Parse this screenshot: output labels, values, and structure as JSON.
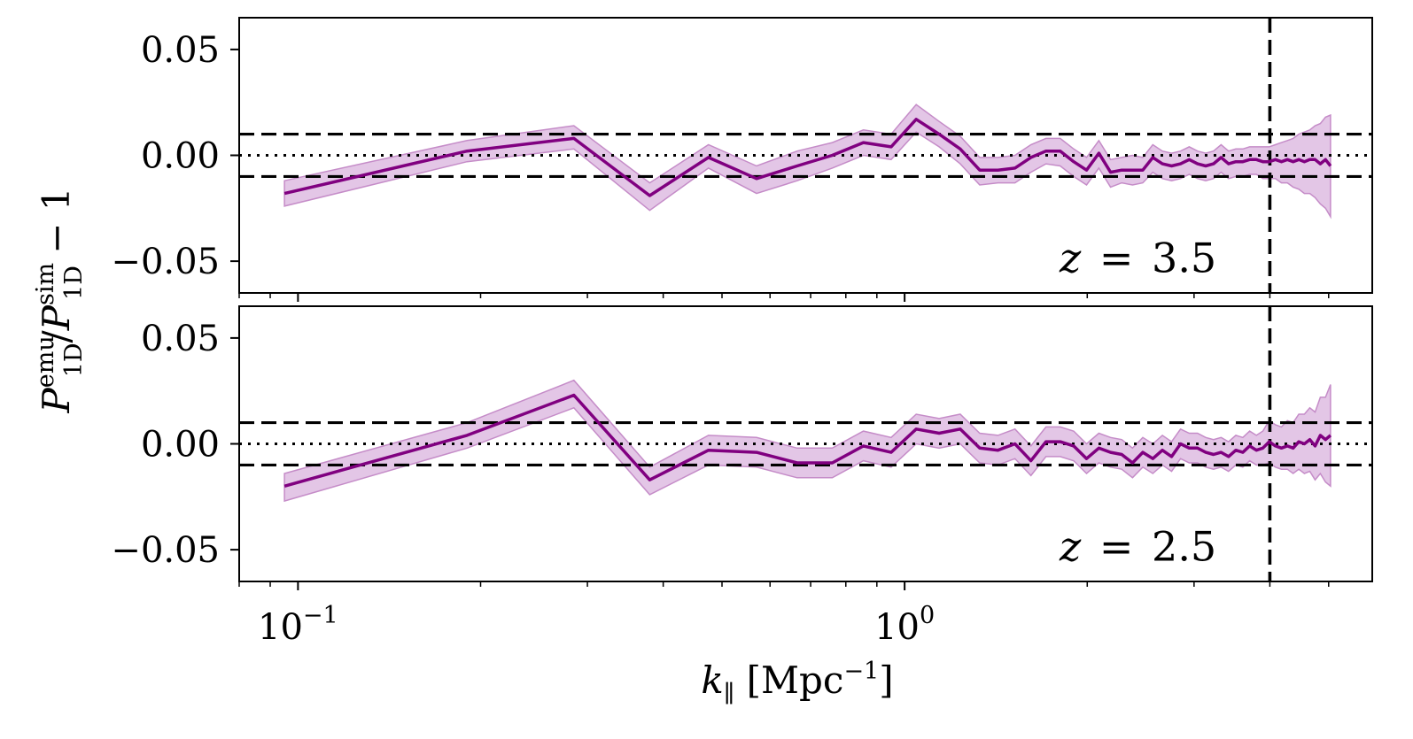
{
  "chart_data": {
    "type": "line",
    "ylabel": "P_1D^emu / P_1D^sim − 1",
    "xlabel": "k_∥ [Mpc⁻¹]",
    "xscale": "log",
    "xlim": [
      0.08,
      5.9
    ],
    "x_ticks": [
      {
        "value": 0.1,
        "base": "10",
        "exp": "−1"
      },
      {
        "value": 1.0,
        "base": "10",
        "exp": "0"
      }
    ],
    "y_ticks": [
      {
        "value": 0.05,
        "label": "0.05"
      },
      {
        "value": 0.0,
        "label": "0.00"
      },
      {
        "value": -0.05,
        "label": "−0.05"
      }
    ],
    "reference_lines": {
      "dashed_y": [
        0.01,
        -0.01
      ],
      "dotted_y": [
        0.0
      ],
      "dashed_x": 4.0
    },
    "colors": {
      "line": "#800080",
      "band": "#dab3dd",
      "band_edge": "#c58cc8",
      "reference": "#000000"
    },
    "x": [
      0.095,
      0.19,
      0.285,
      0.38,
      0.475,
      0.57,
      0.665,
      0.76,
      0.855,
      0.95,
      1.045,
      1.14,
      1.235,
      1.33,
      1.425,
      1.52,
      1.615,
      1.71,
      1.805,
      1.9,
      1.995,
      2.09,
      2.185,
      2.28,
      2.375,
      2.47,
      2.565,
      2.66,
      2.755,
      2.85,
      2.945,
      3.04,
      3.135,
      3.23,
      3.325,
      3.42,
      3.515,
      3.61,
      3.705,
      3.8,
      3.895,
      3.99,
      4.085,
      4.18,
      4.275,
      4.37,
      4.465,
      4.56,
      4.655,
      4.75,
      4.845,
      4.94,
      5.035
    ],
    "panels": [
      {
        "label_var": "z",
        "label_eq": "=",
        "label_num": "3.5",
        "ylim": [
          -0.065,
          0.065
        ],
        "y": [
          -0.018,
          0.002,
          0.008,
          -0.019,
          -0.001,
          -0.011,
          -0.005,
          0.0,
          0.006,
          0.004,
          0.017,
          0.01,
          0.003,
          -0.007,
          -0.007,
          -0.006,
          -0.001,
          0.002,
          0.002,
          -0.003,
          -0.007,
          0.001,
          -0.008,
          -0.007,
          -0.007,
          -0.007,
          -0.001,
          -0.004,
          -0.005,
          -0.004,
          -0.002,
          -0.004,
          -0.005,
          -0.004,
          -0.001,
          -0.004,
          -0.003,
          -0.003,
          -0.002,
          -0.002,
          -0.003,
          -0.003,
          -0.002,
          -0.003,
          -0.002,
          -0.003,
          -0.002,
          -0.003,
          -0.002,
          -0.002,
          -0.004,
          -0.002,
          -0.005
        ],
        "y_low": [
          -0.024,
          -0.003,
          0.003,
          -0.026,
          -0.006,
          -0.018,
          -0.012,
          -0.006,
          0.0,
          -0.002,
          0.011,
          0.004,
          -0.004,
          -0.014,
          -0.013,
          -0.013,
          -0.008,
          -0.004,
          -0.005,
          -0.01,
          -0.014,
          -0.006,
          -0.015,
          -0.013,
          -0.014,
          -0.013,
          -0.008,
          -0.011,
          -0.012,
          -0.011,
          -0.009,
          -0.011,
          -0.012,
          -0.011,
          -0.008,
          -0.011,
          -0.01,
          -0.01,
          -0.009,
          -0.009,
          -0.011,
          -0.011,
          -0.011,
          -0.013,
          -0.013,
          -0.015,
          -0.016,
          -0.018,
          -0.018,
          -0.02,
          -0.023,
          -0.025,
          -0.029
        ],
        "y_high": [
          -0.012,
          0.007,
          0.014,
          -0.013,
          0.005,
          -0.005,
          0.002,
          0.006,
          0.012,
          0.01,
          0.024,
          0.016,
          0.009,
          -0.001,
          -0.001,
          0.0,
          0.005,
          0.008,
          0.008,
          0.003,
          -0.001,
          0.007,
          -0.002,
          -0.001,
          0.0,
          -0.001,
          0.005,
          0.002,
          0.001,
          0.002,
          0.004,
          0.002,
          0.001,
          0.002,
          0.005,
          0.002,
          0.003,
          0.003,
          0.004,
          0.004,
          0.004,
          0.004,
          0.005,
          0.006,
          0.007,
          0.008,
          0.01,
          0.011,
          0.012,
          0.014,
          0.015,
          0.018,
          0.019
        ]
      },
      {
        "label_var": "z",
        "label_eq": "=",
        "label_num": "2.5",
        "ylim": [
          -0.065,
          0.065
        ],
        "y": [
          -0.02,
          0.004,
          0.023,
          -0.017,
          -0.003,
          -0.004,
          -0.009,
          -0.009,
          -0.001,
          -0.004,
          0.007,
          0.005,
          0.007,
          -0.002,
          -0.003,
          0.0,
          -0.008,
          0.001,
          0.001,
          -0.001,
          -0.007,
          -0.002,
          -0.004,
          -0.005,
          -0.009,
          -0.004,
          -0.007,
          -0.003,
          -0.006,
          0.0,
          -0.002,
          -0.002,
          -0.004,
          -0.005,
          -0.004,
          -0.006,
          -0.003,
          -0.004,
          -0.001,
          -0.003,
          -0.002,
          0.001,
          -0.001,
          -0.002,
          -0.001,
          -0.002,
          0.001,
          0.0,
          0.002,
          -0.001,
          0.004,
          0.002,
          0.004
        ],
        "y_low": [
          -0.027,
          -0.002,
          0.017,
          -0.024,
          -0.01,
          -0.011,
          -0.016,
          -0.016,
          -0.008,
          -0.011,
          0.0,
          -0.002,
          0.0,
          -0.009,
          -0.01,
          -0.007,
          -0.015,
          -0.006,
          -0.006,
          -0.008,
          -0.014,
          -0.009,
          -0.011,
          -0.012,
          -0.016,
          -0.011,
          -0.014,
          -0.01,
          -0.013,
          -0.007,
          -0.009,
          -0.009,
          -0.011,
          -0.012,
          -0.011,
          -0.013,
          -0.01,
          -0.011,
          -0.008,
          -0.01,
          -0.01,
          -0.009,
          -0.011,
          -0.012,
          -0.012,
          -0.014,
          -0.012,
          -0.014,
          -0.013,
          -0.017,
          -0.014,
          -0.018,
          -0.02
        ],
        "y_high": [
          -0.014,
          0.01,
          0.03,
          -0.011,
          0.004,
          0.003,
          -0.002,
          -0.002,
          0.006,
          0.003,
          0.014,
          0.012,
          0.014,
          0.005,
          0.004,
          0.007,
          -0.001,
          0.008,
          0.008,
          0.006,
          0.0,
          0.005,
          0.003,
          0.002,
          -0.002,
          0.003,
          0.0,
          0.004,
          0.001,
          0.007,
          0.005,
          0.005,
          0.003,
          0.002,
          0.003,
          0.001,
          0.004,
          0.003,
          0.006,
          0.004,
          0.006,
          0.011,
          0.009,
          0.008,
          0.011,
          0.01,
          0.014,
          0.014,
          0.017,
          0.015,
          0.022,
          0.022,
          0.028
        ]
      }
    ]
  }
}
